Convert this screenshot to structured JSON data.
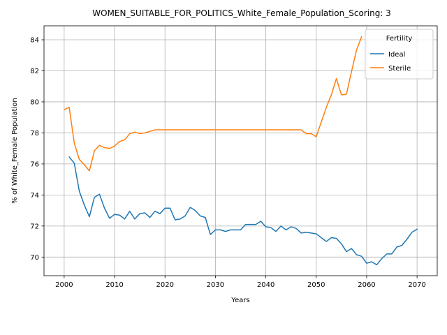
{
  "chart_data": {
    "type": "line",
    "title": "WOMEN_SUITABLE_FOR_POLITICS_White_Female_Population_Scoring: 3",
    "xlabel": "Years",
    "ylabel": "% of White_Female Population",
    "xlim": [
      1996,
      2074
    ],
    "ylim": [
      68.8,
      84.9
    ],
    "xticks": [
      2000,
      2010,
      2020,
      2030,
      2040,
      2050,
      2060,
      2070
    ],
    "yticks": [
      70,
      72,
      74,
      76,
      78,
      80,
      82,
      84
    ],
    "grid": true,
    "legend": {
      "title": "Fertility",
      "position": "top-right"
    },
    "series": [
      {
        "name": "Ideal",
        "color": "#1f77b4",
        "x": [
          2001,
          2002,
          2003,
          2004,
          2005,
          2006,
          2007,
          2008,
          2009,
          2010,
          2011,
          2012,
          2013,
          2014,
          2015,
          2016,
          2017,
          2018,
          2019,
          2020,
          2021,
          2022,
          2023,
          2024,
          2025,
          2026,
          2027,
          2028,
          2029,
          2030,
          2031,
          2032,
          2033,
          2034,
          2035,
          2036,
          2037,
          2038,
          2039,
          2040,
          2041,
          2042,
          2043,
          2044,
          2045,
          2046,
          2047,
          2048,
          2049,
          2050,
          2051,
          2052,
          2053,
          2054,
          2055,
          2056,
          2057,
          2058,
          2059,
          2060,
          2061,
          2062,
          2063,
          2064,
          2065,
          2066,
          2067,
          2068,
          2069,
          2070
        ],
        "values": [
          76.45,
          76.05,
          74.25,
          73.35,
          72.6,
          73.85,
          74.05,
          73.15,
          72.5,
          72.75,
          72.7,
          72.45,
          72.95,
          72.45,
          72.8,
          72.85,
          72.55,
          72.95,
          72.8,
          73.15,
          73.15,
          72.4,
          72.45,
          72.65,
          73.2,
          73.0,
          72.65,
          72.55,
          71.45,
          71.75,
          71.75,
          71.65,
          71.75,
          71.75,
          71.75,
          72.1,
          72.1,
          72.1,
          72.3,
          71.95,
          71.9,
          71.65,
          72.0,
          71.75,
          71.95,
          71.85,
          71.55,
          71.6,
          71.55,
          71.5,
          71.25,
          71.0,
          71.25,
          71.2,
          70.85,
          70.35,
          70.55,
          70.15,
          70.05,
          69.6,
          69.7,
          69.5,
          69.9,
          70.2,
          70.2,
          70.65,
          70.75,
          71.15,
          71.6,
          71.8
        ]
      },
      {
        "name": "Sterile",
        "color": "#ff7f0e",
        "x": [
          2000,
          2001,
          2002,
          2003,
          2004,
          2005,
          2006,
          2007,
          2008,
          2009,
          2010,
          2011,
          2012,
          2013,
          2014,
          2015,
          2016,
          2017,
          2018,
          2019,
          2020,
          2021,
          2022,
          2023,
          2024,
          2025,
          2026,
          2027,
          2028,
          2029,
          2030,
          2031,
          2032,
          2033,
          2034,
          2035,
          2036,
          2037,
          2038,
          2039,
          2040,
          2041,
          2042,
          2043,
          2044,
          2045,
          2046,
          2047,
          2048,
          2049,
          2050,
          2051,
          2052,
          2053,
          2054,
          2055,
          2056,
          2057,
          2058,
          2059
        ],
        "values": [
          79.5,
          79.65,
          77.35,
          76.3,
          75.95,
          75.55,
          76.85,
          77.2,
          77.05,
          77.0,
          77.15,
          77.45,
          77.55,
          77.95,
          78.05,
          77.95,
          78.0,
          78.1,
          78.2,
          78.2,
          78.2,
          78.2,
          78.2,
          78.2,
          78.2,
          78.2,
          78.2,
          78.2,
          78.2,
          78.2,
          78.2,
          78.2,
          78.2,
          78.2,
          78.2,
          78.2,
          78.2,
          78.2,
          78.2,
          78.2,
          78.2,
          78.2,
          78.2,
          78.2,
          78.2,
          78.2,
          78.2,
          78.2,
          77.95,
          77.95,
          77.75,
          78.7,
          79.65,
          80.45,
          81.5,
          80.45,
          80.5,
          81.95,
          83.35,
          84.2
        ]
      }
    ]
  }
}
